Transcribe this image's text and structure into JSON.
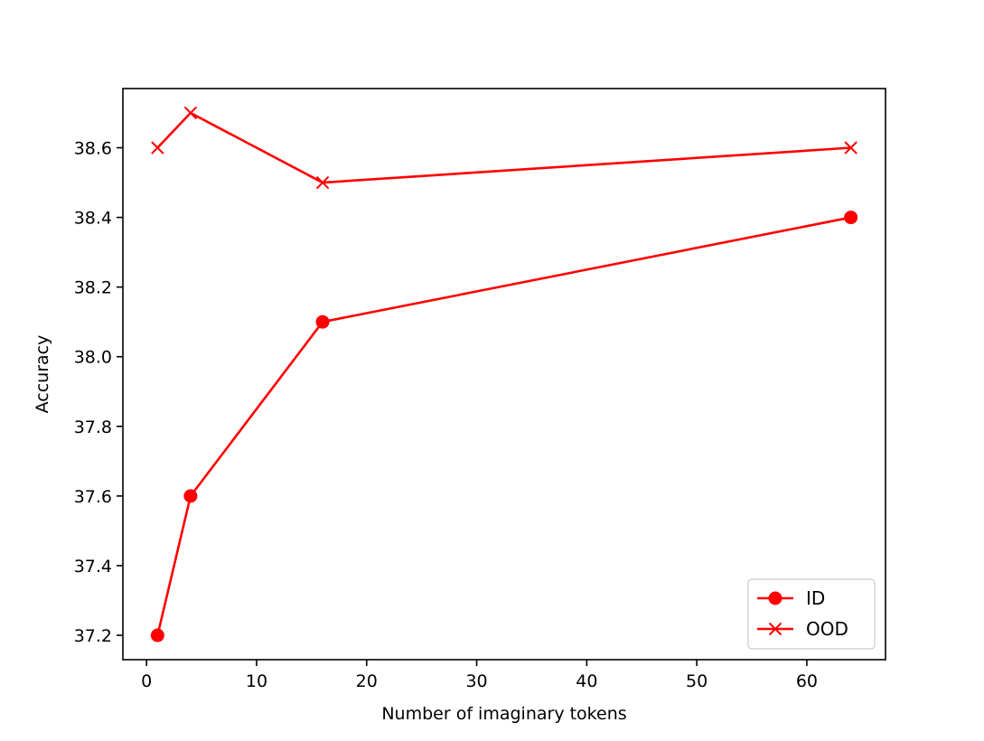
{
  "colors": {
    "series": "#ff0000",
    "axis": "#000000",
    "background": "#ffffff",
    "legend_border": "#cccccc"
  },
  "chart_data": {
    "type": "line",
    "title": "",
    "xlabel": "Number of imaginary tokens",
    "ylabel": "Accuracy",
    "xlim": [
      -2.15,
      67.15
    ],
    "ylim": [
      37.13,
      38.77
    ],
    "xticks": [
      0,
      10,
      20,
      30,
      40,
      50,
      60
    ],
    "xtick_labels": [
      "0",
      "10",
      "20",
      "30",
      "40",
      "50",
      "60"
    ],
    "yticks": [
      37.2,
      37.4,
      37.6,
      37.8,
      38.0,
      38.2,
      38.4,
      38.6
    ],
    "ytick_labels": [
      "37.2",
      "37.4",
      "37.6",
      "37.8",
      "38.0",
      "38.2",
      "38.4",
      "38.6"
    ],
    "grid": false,
    "legend_position": "lower right",
    "series": [
      {
        "name": "ID",
        "marker": "circle",
        "color": "#ff0000",
        "x": [
          1,
          4,
          16,
          64
        ],
        "y": [
          37.2,
          37.6,
          38.1,
          38.4
        ]
      },
      {
        "name": "OOD",
        "marker": "x",
        "color": "#ff0000",
        "x": [
          1,
          4,
          16,
          64
        ],
        "y": [
          38.6,
          38.7,
          38.5,
          38.6
        ]
      }
    ]
  }
}
